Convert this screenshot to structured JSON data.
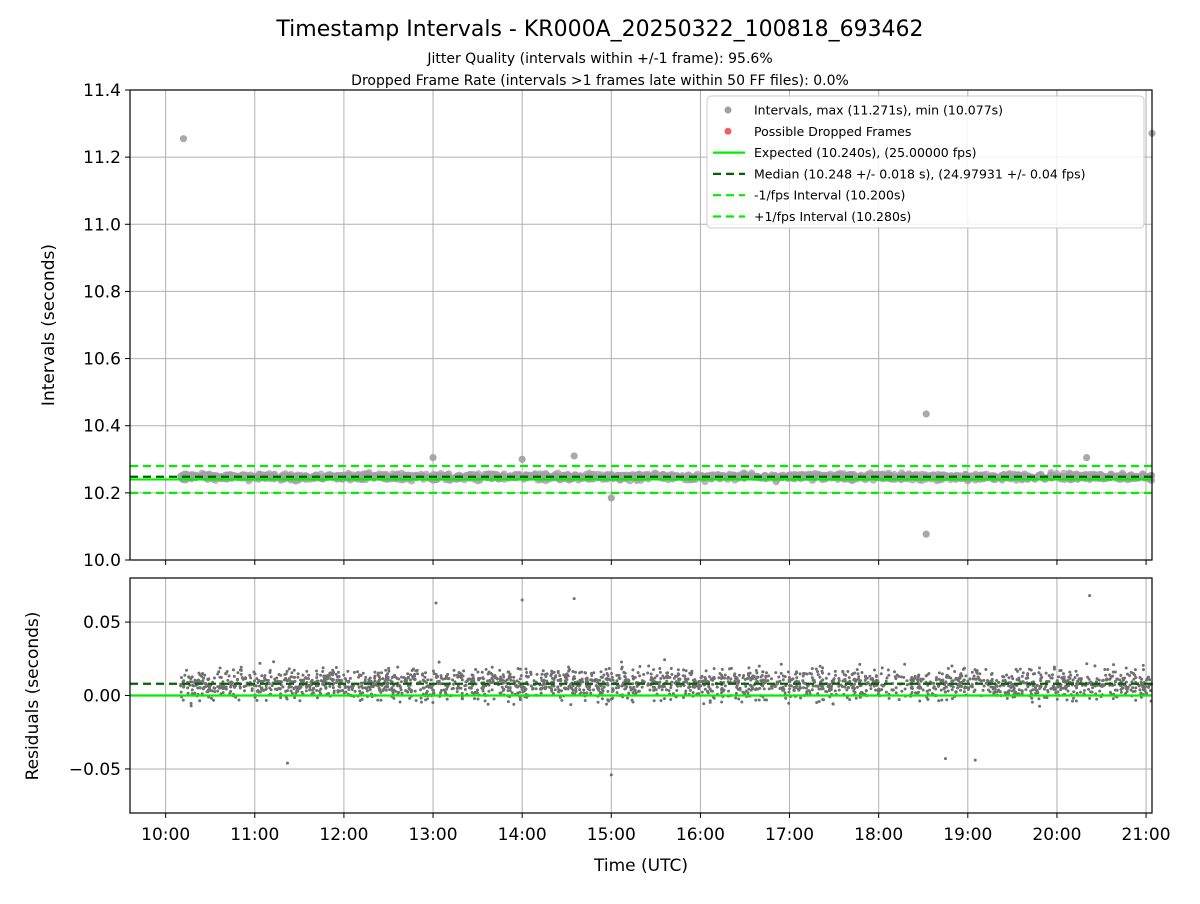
{
  "chart_data": [
    {
      "type": "scatter",
      "title": "Timestamp Intervals - KR000A_20250322_100818_693462",
      "subtitle_lines": [
        "Jitter Quality (intervals within +/-1 frame): 95.6%",
        "Dropped Frame Rate (intervals >1 frames late within 50 FF files): 0.0%"
      ],
      "ylabel": "Intervals (seconds)",
      "xlabel": "",
      "xlim": [
        "09:36",
        "21:04"
      ],
      "ylim": [
        10.0,
        11.4
      ],
      "yticks": [
        10.0,
        10.2,
        10.4,
        10.6,
        10.8,
        11.0,
        11.2,
        11.4
      ],
      "ytick_labels": [
        "10.0",
        "10.2",
        "10.4",
        "10.6",
        "10.8",
        "11.0",
        "11.2",
        "11.4"
      ],
      "grid": true,
      "legend_position": "upper-right",
      "legend": [
        {
          "label": "Intervals, max (11.271s), min (10.077s)",
          "kind": "marker",
          "color": "#a0a0a0"
        },
        {
          "label": "Possible Dropped Frames",
          "kind": "marker",
          "color": "#f06060"
        },
        {
          "label": "Expected (10.240s), (25.00000 fps)",
          "kind": "solid",
          "color": "#00ee00"
        },
        {
          "label": "Median (10.248 +/- 0.018 s), (24.97931 +/- 0.04 fps)",
          "kind": "dashed",
          "color": "#006400"
        },
        {
          "label": "-1/fps Interval (10.200s)",
          "kind": "dashed",
          "color": "#00ee00"
        },
        {
          "label": "+1/fps Interval (10.280s)",
          "kind": "dashed",
          "color": "#00ee00"
        }
      ],
      "reference_lines": [
        {
          "name": "Expected",
          "y": 10.24,
          "style": "solid",
          "color": "#00ee00"
        },
        {
          "name": "Median",
          "y": 10.248,
          "style": "dashed",
          "color": "#006400"
        },
        {
          "name": "-1/fps",
          "y": 10.2,
          "style": "dashed",
          "color": "#00ee00"
        },
        {
          "name": "+1/fps",
          "y": 10.28,
          "style": "dashed",
          "color": "#00ee00"
        }
      ],
      "series": [
        {
          "name": "Intervals",
          "color": "#a0a0a0",
          "x_range": [
            "10:10",
            "21:04"
          ],
          "y_band": [
            10.2,
            10.285
          ],
          "outliers": [
            {
              "x": "10:12",
              "y": 11.255
            },
            {
              "x": "18:32",
              "y": 10.435
            },
            {
              "x": "18:32",
              "y": 10.077
            },
            {
              "x": "21:04",
              "y": 11.271
            },
            {
              "x": "15:00",
              "y": 10.185
            },
            {
              "x": "14:00",
              "y": 10.3
            },
            {
              "x": "14:35",
              "y": 10.31
            },
            {
              "x": "13:00",
              "y": 10.305
            },
            {
              "x": "20:20",
              "y": 10.305
            }
          ]
        }
      ]
    },
    {
      "type": "scatter",
      "title": "",
      "ylabel": "Residuals (seconds)",
      "xlabel": "Time (UTC)",
      "xlim": [
        "09:36",
        "21:04"
      ],
      "ylim": [
        -0.08,
        0.08
      ],
      "yticks": [
        0.05,
        0.0,
        -0.05
      ],
      "ytick_labels": [
        "0.05",
        "0.00",
        "−0.05"
      ],
      "xticks": [
        "10:00",
        "11:00",
        "12:00",
        "13:00",
        "14:00",
        "15:00",
        "16:00",
        "17:00",
        "18:00",
        "19:00",
        "20:00",
        "21:00"
      ],
      "grid": true,
      "reference_lines": [
        {
          "name": "Median",
          "y": 0.008,
          "style": "dashed",
          "color": "#006400"
        },
        {
          "name": "Expected",
          "y": 0.0,
          "style": "solid",
          "color": "#00ee00"
        }
      ],
      "series": [
        {
          "name": "Residuals",
          "color": "#707070",
          "x_range": [
            "10:10",
            "21:04"
          ],
          "y_band": [
            -0.04,
            0.06
          ],
          "outliers": [
            {
              "x": "13:02",
              "y": 0.063
            },
            {
              "x": "14:00",
              "y": 0.065
            },
            {
              "x": "14:35",
              "y": 0.066
            },
            {
              "x": "20:22",
              "y": 0.068
            },
            {
              "x": "15:00",
              "y": -0.054
            },
            {
              "x": "11:22",
              "y": -0.046
            },
            {
              "x": "18:45",
              "y": -0.043
            },
            {
              "x": "19:05",
              "y": -0.044
            }
          ]
        }
      ]
    }
  ]
}
